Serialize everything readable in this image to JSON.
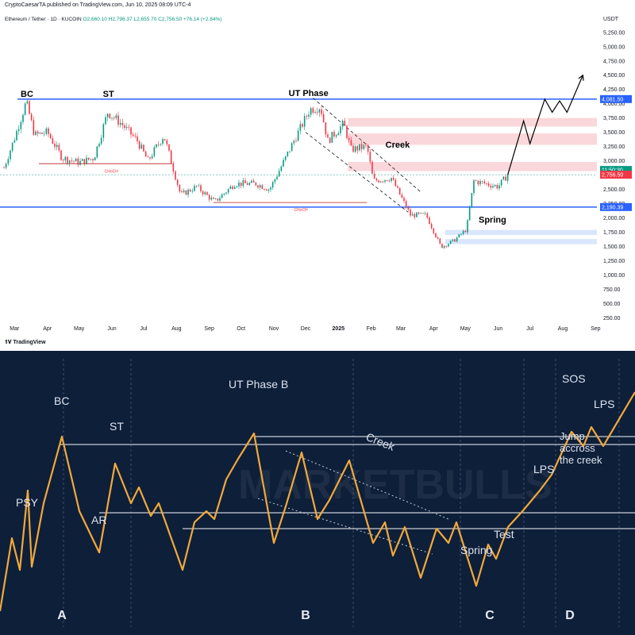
{
  "header": {
    "published": "CryptoCaesarTA published on TradingView.com, Jun 10, 2025 08:09 UTC-4",
    "symbol": "Ethereum / Tether · 1D · KUCOIN",
    "ohlc": "O2,660.10 H2,798.37 L2,655.70 C2,756.50 +76.14 (+2.84%)",
    "unit": "USDT",
    "footer": "TradingView"
  },
  "chart_data": [
    {
      "type": "candlestick",
      "title": "Ethereum / Tether · 1D · KUCOIN",
      "ylabel": "USDT",
      "yticks": [
        "5,250.00",
        "5,000.00",
        "4,750.00",
        "4,500.00",
        "4,250.00",
        "4,000.00",
        "3,750.00",
        "3,500.00",
        "3,250.00",
        "3,000.00",
        "2,750.00",
        "2,500.00",
        "2,250.00",
        "2,000.00",
        "1,750.00",
        "1,500.00",
        "1,250.00",
        "1,000.00",
        "750.00",
        "500.00",
        "250.00"
      ],
      "ylim": [
        200,
        5400
      ],
      "xticks": [
        "Mar",
        "Apr",
        "May",
        "Jun",
        "Jul",
        "Aug",
        "Sep",
        "Oct",
        "Nov",
        "Dec",
        "2025",
        "Feb",
        "Mar",
        "Apr",
        "May",
        "Jun",
        "Jul",
        "Aug",
        "Sep"
      ],
      "price_labels": [
        {
          "text": "4,081.50",
          "value": 4081.5,
          "color": "#2962ff"
        },
        {
          "text": "11:50:30",
          "value": 2840,
          "color": "#089981"
        },
        {
          "text": "2,756.50",
          "value": 2756.5,
          "color": "#f23645"
        },
        {
          "text": "2,190.39",
          "value": 2190.39,
          "color": "#2962ff"
        }
      ],
      "levels": {
        "range_high": 4081.5,
        "range_low": 2190.39,
        "current": 2756.5
      },
      "annotations": [
        "BC",
        "ST",
        "UT Phase",
        "Creek",
        "Spring"
      ],
      "close_path": [
        [
          "2024-02-20",
          2880
        ],
        [
          "2024-03-01",
          3400
        ],
        [
          "2024-03-12",
          4030
        ],
        [
          "2024-03-20",
          3450
        ],
        [
          "2024-04-01",
          3500
        ],
        [
          "2024-04-15",
          3050
        ],
        [
          "2024-05-01",
          2970
        ],
        [
          "2024-05-15",
          3050
        ],
        [
          "2024-05-28",
          3850
        ],
        [
          "2024-06-10",
          3650
        ],
        [
          "2024-06-25",
          3350
        ],
        [
          "2024-07-05",
          3000
        ],
        [
          "2024-07-20",
          3450
        ],
        [
          "2024-08-05",
          2400
        ],
        [
          "2024-08-20",
          2550
        ],
        [
          "2024-09-06",
          2280
        ],
        [
          "2024-09-25",
          2600
        ],
        [
          "2024-10-15",
          2600
        ],
        [
          "2024-10-28",
          2500
        ],
        [
          "2024-11-08",
          2900
        ],
        [
          "2024-11-20",
          3350
        ],
        [
          "2024-12-05",
          3900
        ],
        [
          "2024-12-15",
          3950
        ],
        [
          "2024-12-22",
          3350
        ],
        [
          "2025-01-06",
          3650
        ],
        [
          "2025-01-13",
          3200
        ],
        [
          "2025-01-28",
          3250
        ],
        [
          "2025-02-03",
          2650
        ],
        [
          "2025-02-20",
          2700
        ],
        [
          "2025-03-10",
          2050
        ],
        [
          "2025-03-25",
          2050
        ],
        [
          "2025-04-08",
          1490
        ],
        [
          "2025-04-20",
          1600
        ],
        [
          "2025-05-02",
          1800
        ],
        [
          "2025-05-09",
          2650
        ],
        [
          "2025-05-20",
          2600
        ],
        [
          "2025-06-01",
          2550
        ],
        [
          "2025-06-10",
          2756
        ]
      ],
      "projection": [
        [
          "2025-06-10",
          2756
        ],
        [
          "2025-06-25",
          3700
        ],
        [
          "2025-07-01",
          3300
        ],
        [
          "2025-07-15",
          4080
        ],
        [
          "2025-07-22",
          3850
        ],
        [
          "2025-07-29",
          4050
        ],
        [
          "2025-08-05",
          3850
        ],
        [
          "2025-08-20",
          4500
        ]
      ]
    },
    {
      "type": "line",
      "title": "",
      "phases": [
        "A",
        "B",
        "C",
        "D"
      ],
      "labels": [
        "PSY",
        "BC",
        "AR",
        "ST",
        "UT Phase B",
        "Creek",
        "Spring",
        "Test",
        "LPS",
        "SOS",
        "LPS",
        "Jump accross the creek"
      ],
      "x": [
        0,
        15,
        35,
        40,
        68,
        80,
        120,
        160,
        180,
        230,
        250,
        320,
        350,
        380,
        410,
        435,
        470,
        500,
        530,
        570,
        600,
        620,
        660,
        700,
        720,
        760,
        800
      ],
      "y": [
        88,
        92,
        62,
        72,
        38,
        28,
        82,
        36,
        48,
        70,
        68,
        33,
        76,
        58,
        96,
        82,
        97,
        90,
        103,
        110,
        124,
        110,
        95,
        67,
        42,
        37,
        0
      ]
    }
  ],
  "top_labels": {
    "bc": "BC",
    "st": "ST",
    "ut": "UT Phase",
    "creek": "Creek",
    "spring": "Spring",
    "choch": "CHoCH"
  },
  "bottom_labels": {
    "psy": "PSY",
    "bc": "BC",
    "ar": "AR",
    "st": "ST",
    "ut": "UT Phase B",
    "creek": "Creek",
    "spring": "Spring",
    "test": "Test",
    "lps1": "LPS",
    "sos": "SOS",
    "lps2": "LPS",
    "jump1": "Jump",
    "jump2": "accross",
    "jump3": "the creek",
    "phaseA": "A",
    "phaseB": "B",
    "phaseC": "C",
    "phaseD": "D",
    "watermark": "MARKETBULLS"
  },
  "colors": {
    "up": "#089981",
    "down": "#f23645",
    "level": "#2962ff",
    "projection": "#000000",
    "zone": "#f8c9cf",
    "zone_blue": "#cfe0fb",
    "bg_bottom": "#0e1f3a",
    "wave": "#f2a93b"
  }
}
